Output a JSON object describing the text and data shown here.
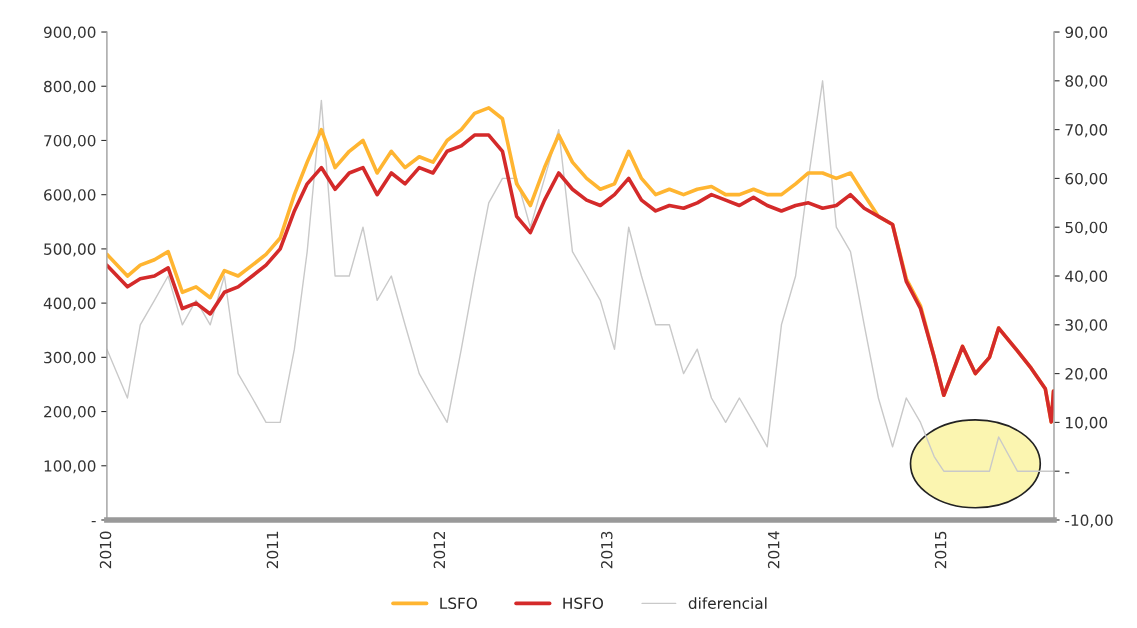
{
  "chart_data": {
    "type": "line",
    "x": [
      "2010-01-01",
      "2010-02-15",
      "2010-03-15",
      "2010-04-15",
      "2010-05-15",
      "2010-06-15",
      "2010-07-15",
      "2010-08-15",
      "2010-09-15",
      "2010-10-15",
      "2010-11-15",
      "2010-12-15",
      "2011-01-15",
      "2011-02-15",
      "2011-03-15",
      "2011-04-15",
      "2011-05-15",
      "2011-06-15",
      "2011-07-15",
      "2011-08-15",
      "2011-09-15",
      "2011-10-15",
      "2011-11-15",
      "2011-12-15",
      "2012-01-15",
      "2012-02-15",
      "2012-03-15",
      "2012-04-15",
      "2012-05-15",
      "2012-06-15",
      "2012-07-15",
      "2012-08-15",
      "2012-09-15",
      "2012-10-15",
      "2012-11-15",
      "2012-12-15",
      "2013-01-15",
      "2013-02-15",
      "2013-03-15",
      "2013-04-15",
      "2013-05-15",
      "2013-06-15",
      "2013-07-15",
      "2013-08-15",
      "2013-09-15",
      "2013-10-15",
      "2013-11-15",
      "2013-12-15",
      "2014-01-15",
      "2014-02-15",
      "2014-03-15",
      "2014-04-15",
      "2014-05-15",
      "2014-06-15",
      "2014-07-15",
      "2014-08-15",
      "2014-09-15",
      "2014-10-15",
      "2014-11-15",
      "2014-12-15",
      "2015-01-05",
      "2015-02-15",
      "2015-03-15",
      "2015-04-15",
      "2015-05-05",
      "2015-06-15",
      "2015-07-15",
      "2015-08-15",
      "2015-08-28",
      "2015-09-02"
    ],
    "series": [
      {
        "name": "LSFO",
        "color": "#ffb531",
        "values": [
          490,
          450,
          470,
          480,
          495,
          420,
          430,
          410,
          460,
          450,
          470,
          490,
          520,
          600,
          660,
          720,
          650,
          680,
          700,
          640,
          680,
          650,
          670,
          660,
          700,
          720,
          750,
          760,
          740,
          620,
          580,
          650,
          710,
          660,
          630,
          610,
          620,
          680,
          630,
          600,
          610,
          600,
          610,
          615,
          600,
          600,
          610,
          600,
          600,
          620,
          640,
          640,
          630,
          640,
          600,
          560,
          545,
          445,
          395,
          300,
          230,
          320,
          270,
          300,
          354,
          312,
          280,
          242,
          181,
          238
        ]
      },
      {
        "name": "HSFO",
        "color": "#d42a2a",
        "values": [
          470,
          430,
          445,
          450,
          465,
          390,
          400,
          380,
          420,
          430,
          450,
          470,
          500,
          570,
          620,
          650,
          610,
          640,
          650,
          600,
          640,
          620,
          650,
          640,
          680,
          690,
          710,
          710,
          680,
          560,
          530,
          590,
          640,
          610,
          590,
          580,
          600,
          630,
          590,
          570,
          580,
          575,
          585,
          600,
          590,
          580,
          595,
          580,
          570,
          580,
          585,
          575,
          580,
          600,
          575,
          560,
          545,
          440,
          390,
          300,
          230,
          320,
          270,
          300,
          354,
          312,
          280,
          242,
          181,
          238
        ]
      },
      {
        "name": "diferencial",
        "color": "#c9c9c9",
        "axis": "y2",
        "values": [
          25,
          15,
          30,
          35,
          40,
          30,
          35,
          30,
          40,
          20,
          15,
          10,
          10,
          25,
          45,
          76,
          40,
          40,
          50,
          35,
          40,
          30,
          20,
          15,
          10,
          25,
          40,
          55,
          60,
          60,
          50,
          60,
          70,
          45,
          40,
          35,
          25,
          50,
          40,
          30,
          30,
          20,
          25,
          15,
          10,
          15,
          10,
          5,
          30,
          40,
          60,
          80,
          50,
          45,
          30,
          15,
          5,
          15,
          10,
          3,
          0,
          0,
          0,
          0,
          7,
          0,
          0,
          0,
          0,
          0
        ]
      }
    ],
    "xlim": [
      "2010-01-01",
      "2015-09-03"
    ],
    "xticks": [
      {
        "value": "2010-01-01",
        "label": "2010"
      },
      {
        "value": "2011-01-01",
        "label": "2011"
      },
      {
        "value": "2012-01-01",
        "label": "2012"
      },
      {
        "value": "2013-01-01",
        "label": "2013"
      },
      {
        "value": "2014-01-01",
        "label": "2014"
      },
      {
        "value": "2015-01-01",
        "label": "2015"
      }
    ],
    "ylim": [
      0,
      900
    ],
    "yticks": [
      {
        "value": 0,
        "label": "-"
      },
      {
        "value": 100,
        "label": "100,00"
      },
      {
        "value": 200,
        "label": "200,00"
      },
      {
        "value": 300,
        "label": "300,00"
      },
      {
        "value": 400,
        "label": "400,00"
      },
      {
        "value": 500,
        "label": "500,00"
      },
      {
        "value": 600,
        "label": "600,00"
      },
      {
        "value": 700,
        "label": "700,00"
      },
      {
        "value": 800,
        "label": "800,00"
      },
      {
        "value": 900,
        "label": "900,00"
      }
    ],
    "y2lim": [
      -10,
      90
    ],
    "y2ticks": [
      {
        "value": -10,
        "label": "-10,00"
      },
      {
        "value": 0,
        "label": "-"
      },
      {
        "value": 10,
        "label": "10,00"
      },
      {
        "value": 20,
        "label": "20,00"
      },
      {
        "value": 30,
        "label": "30,00"
      },
      {
        "value": 40,
        "label": "40,00"
      },
      {
        "value": 50,
        "label": "50,00"
      },
      {
        "value": 60,
        "label": "60,00"
      },
      {
        "value": 70,
        "label": "70,00"
      },
      {
        "value": 80,
        "label": "80,00"
      },
      {
        "value": 90,
        "label": "90,00"
      }
    ],
    "legend": "bottom",
    "grid": false,
    "line_style": "solid",
    "marker": "none"
  }
}
